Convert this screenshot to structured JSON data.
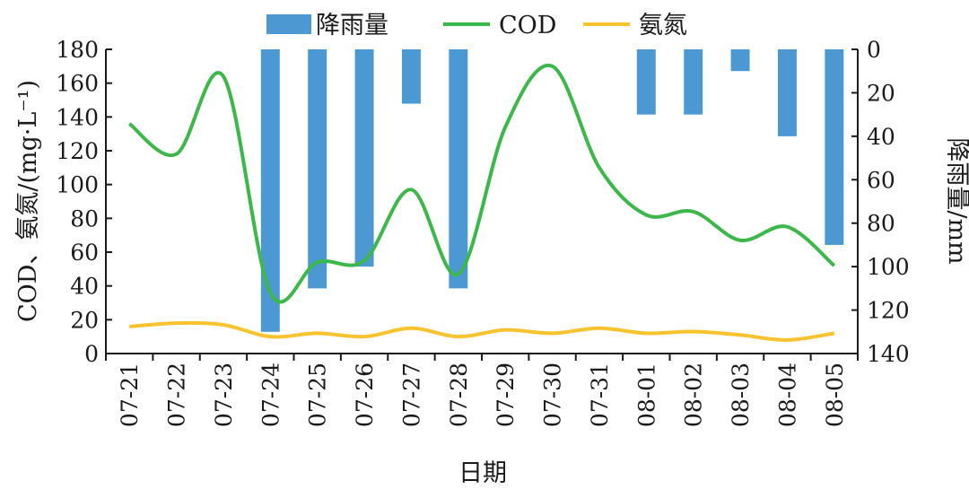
{
  "chart_data": {
    "type": "bar+line",
    "title": "",
    "xlabel": "日期",
    "ylabel_left": "COD、氨氮/(mg·L⁻¹)",
    "ylabel_right": "降雨量/mm",
    "categories": [
      "07-21",
      "07-22",
      "07-23",
      "07-24",
      "07-25",
      "07-26",
      "07-27",
      "07-28",
      "07-29",
      "07-30",
      "07-31",
      "08-01",
      "08-02",
      "08-03",
      "08-04",
      "08-05"
    ],
    "ylim_left": [
      0,
      180
    ],
    "yticks_left": [
      0,
      20,
      40,
      60,
      80,
      100,
      120,
      140,
      160,
      180
    ],
    "ylim_right": [
      0,
      140
    ],
    "yticks_right": [
      0,
      20,
      40,
      60,
      80,
      100,
      120,
      140
    ],
    "right_axis_inverted": true,
    "legend_position": "top",
    "grid": false,
    "series": [
      {
        "name": "降雨量",
        "kind": "bar",
        "axis": "right",
        "color": "#4c98d3",
        "values": [
          0,
          0,
          0,
          130,
          110,
          100,
          25,
          110,
          0,
          0,
          0,
          30,
          30,
          10,
          40,
          90
        ]
      },
      {
        "name": "COD",
        "kind": "line",
        "axis": "left",
        "color": "#3cb84a",
        "values": [
          136,
          118,
          164,
          36,
          54,
          55,
          97,
          47,
          134,
          170,
          110,
          82,
          84,
          67,
          75,
          52
        ]
      },
      {
        "name": "氨氮",
        "kind": "line",
        "axis": "left",
        "color": "#f8c32e",
        "values": [
          16,
          18,
          17,
          10,
          12,
          10,
          15,
          10,
          14,
          12,
          15,
          12,
          13,
          11,
          8,
          12
        ]
      }
    ]
  }
}
